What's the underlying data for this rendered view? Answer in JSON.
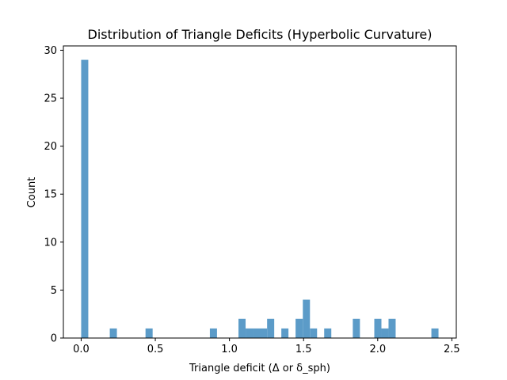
{
  "chart_data": {
    "type": "bar",
    "subtype": "histogram",
    "title": "Distribution of Triangle Deficits (Hyperbolic Curvature)",
    "xlabel": "Triangle deficit (Δ or δ_sph)",
    "ylabel": "Count",
    "xlim": [
      -0.12,
      2.53
    ],
    "ylim": [
      0,
      30.45
    ],
    "xticks": [
      "0.0",
      "0.5",
      "1.0",
      "1.5",
      "2.0",
      "2.5"
    ],
    "yticks": [
      "0",
      "5",
      "10",
      "15",
      "20",
      "25",
      "30"
    ],
    "bar_color": "#5b9bc8",
    "bins": [
      {
        "x0": 0.0,
        "x1": 0.048,
        "count": 29
      },
      {
        "x0": 0.193,
        "x1": 0.241,
        "count": 1
      },
      {
        "x0": 0.434,
        "x1": 0.482,
        "count": 1
      },
      {
        "x0": 0.868,
        "x1": 0.916,
        "count": 1
      },
      {
        "x0": 1.061,
        "x1": 1.109,
        "count": 2
      },
      {
        "x0": 1.109,
        "x1": 1.157,
        "count": 1
      },
      {
        "x0": 1.157,
        "x1": 1.205,
        "count": 1
      },
      {
        "x0": 1.205,
        "x1": 1.254,
        "count": 1
      },
      {
        "x0": 1.254,
        "x1": 1.302,
        "count": 2
      },
      {
        "x0": 1.35,
        "x1": 1.398,
        "count": 1
      },
      {
        "x0": 1.446,
        "x1": 1.495,
        "count": 2
      },
      {
        "x0": 1.495,
        "x1": 1.543,
        "count": 4
      },
      {
        "x0": 1.543,
        "x1": 1.591,
        "count": 1
      },
      {
        "x0": 1.639,
        "x1": 1.687,
        "count": 1
      },
      {
        "x0": 1.832,
        "x1": 1.88,
        "count": 2
      },
      {
        "x0": 1.977,
        "x1": 2.025,
        "count": 2
      },
      {
        "x0": 2.025,
        "x1": 2.073,
        "count": 1
      },
      {
        "x0": 2.073,
        "x1": 2.121,
        "count": 2
      },
      {
        "x0": 2.362,
        "x1": 2.41,
        "count": 1
      }
    ]
  }
}
